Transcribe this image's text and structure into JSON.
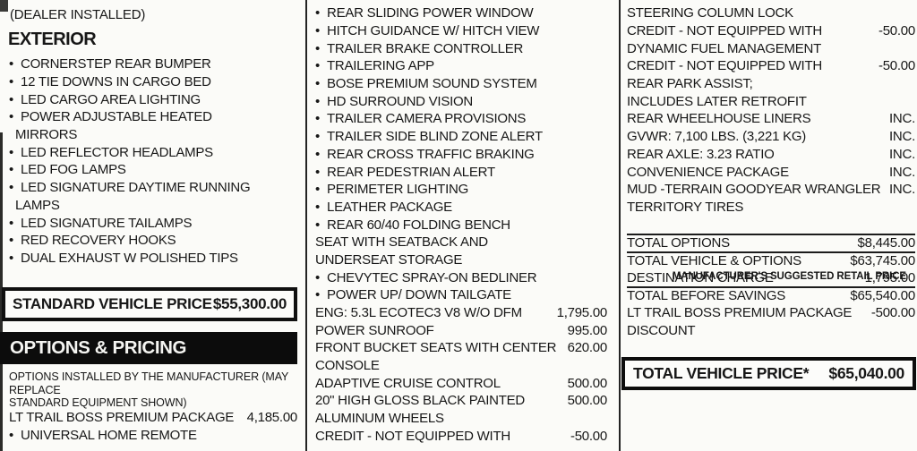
{
  "colors": {
    "ink": "#171717",
    "paper": "#fbfbf8",
    "bar_bg": "#0c0c0c",
    "bar_text": "#f5f5f2"
  },
  "left": {
    "dealer_note": "(DEALER INSTALLED)",
    "exterior_heading": "EXTERIOR",
    "exterior_items": [
      {
        "t": "CORNERSTEP REAR BUMPER",
        "b": true
      },
      {
        "t": "12 TIE DOWNS IN CARGO BED",
        "b": true
      },
      {
        "t": "LED CARGO AREA LIGHTING",
        "b": true
      },
      {
        "t": "POWER ADJUSTABLE HEATED",
        "b": true
      },
      {
        "t": "MIRRORS",
        "cls": "cont"
      },
      {
        "t": "LED REFLECTOR HEADLAMPS",
        "b": true
      },
      {
        "t": "LED FOG LAMPS",
        "b": true
      },
      {
        "t": "LED SIGNATURE DAYTIME RUNNING",
        "b": true
      },
      {
        "t": "LAMPS",
        "cls": "cont"
      },
      {
        "t": "LED SIGNATURE TAILAMPS",
        "b": true
      },
      {
        "t": "RED RECOVERY HOOKS",
        "b": true
      },
      {
        "t": "DUAL EXHAUST W POLISHED TIPS",
        "b": true
      }
    ],
    "msrp_note": "MANUFACTURER'S SUGGESTED RETAIL PRICE",
    "standard_price_label": "STANDARD VEHICLE PRICE",
    "standard_price_value": "$55,300.00",
    "options_pricing_heading": "OPTIONS & PRICING",
    "manufacturer_note_line1": "OPTIONS INSTALLED BY THE MANUFACTURER (MAY REPLACE",
    "manufacturer_note_line2": "STANDARD EQUIPMENT SHOWN)",
    "option_rows": [
      {
        "t": "LT TRAIL BOSS PREMIUM PACKAGE",
        "v": "4,185.00"
      },
      {
        "t": "UNIVERSAL HOME REMOTE",
        "b": true
      }
    ]
  },
  "mid": {
    "rows": [
      {
        "t": "REAR SLIDING POWER WINDOW",
        "b": true
      },
      {
        "t": "HITCH GUIDANCE W/ HITCH VIEW",
        "b": true
      },
      {
        "t": "TRAILER BRAKE CONTROLLER",
        "b": true
      },
      {
        "t": "TRAILERING APP",
        "b": true
      },
      {
        "t": "BOSE PREMIUM SOUND SYSTEM",
        "b": true
      },
      {
        "t": "HD SURROUND VISION",
        "b": true
      },
      {
        "t": "TRAILER CAMERA PROVISIONS",
        "b": true
      },
      {
        "t": "TRAILER SIDE BLIND ZONE ALERT",
        "b": true
      },
      {
        "t": "REAR CROSS TRAFFIC BRAKING",
        "b": true
      },
      {
        "t": "REAR PEDESTRIAN ALERT",
        "b": true
      },
      {
        "t": "PERIMETER LIGHTING",
        "b": true
      },
      {
        "t": "LEATHER PACKAGE",
        "b": true
      },
      {
        "t": "REAR 60/40 FOLDING BENCH",
        "b": true
      },
      {
        "t": "SEAT WITH SEATBACK AND"
      },
      {
        "t": "UNDERSEAT STORAGE"
      },
      {
        "t": "CHEVYTEC SPRAY-ON BEDLINER",
        "b": true
      },
      {
        "t": "POWER UP/ DOWN TAILGATE",
        "b": true
      },
      {
        "t": "ENG: 5.3L ECOTEC3 V8 W/O DFM",
        "v": "1,795.00"
      },
      {
        "t": "POWER SUNROOF",
        "v": "995.00"
      },
      {
        "t": "FRONT BUCKET SEATS WITH CENTER",
        "v": "620.00"
      },
      {
        "t": "CONSOLE"
      },
      {
        "t": "ADAPTIVE CRUISE CONTROL",
        "v": "500.00"
      },
      {
        "t": "20\" HIGH GLOSS BLACK PAINTED",
        "v": "500.00"
      },
      {
        "t": "ALUMINUM WHEELS"
      },
      {
        "t": "CREDIT - NOT EQUIPPED WITH",
        "v": "-50.00"
      }
    ]
  },
  "right": {
    "rows": [
      {
        "t": "STEERING COLUMN LOCK"
      },
      {
        "t": "CREDIT - NOT EQUIPPED WITH",
        "v": "-50.00"
      },
      {
        "t": "DYNAMIC FUEL MANAGEMENT"
      },
      {
        "t": "CREDIT - NOT EQUIPPED WITH",
        "v": "-50.00"
      },
      {
        "t": "REAR PARK ASSIST;"
      },
      {
        "t": "INCLUDES LATER RETROFIT"
      },
      {
        "t": "REAR WHEELHOUSE LINERS",
        "v": "INC."
      },
      {
        "t": "GVWR: 7,100 LBS. (3,221 KG)",
        "v": "INC."
      },
      {
        "t": "REAR AXLE: 3.23 RATIO",
        "v": "INC."
      },
      {
        "t": "CONVENIENCE PACKAGE",
        "v": "INC."
      },
      {
        "t": "MUD -TERRAIN GOODYEAR WRANGLER",
        "v": "INC."
      },
      {
        "t": "TERRITORY TIRES"
      },
      {
        "t": ""
      },
      {
        "t": "TOTAL OPTIONS",
        "v": "$8,445.00",
        "cls": "tl"
      },
      {
        "t": "TOTAL VEHICLE & OPTIONS",
        "v": "$63,745.00",
        "cls": "tl"
      },
      {
        "t": "DESTINATION CHARGE",
        "v": "1,795.00"
      },
      {
        "t": "TOTAL BEFORE SAVINGS",
        "v": "$65,540.00",
        "cls": "tl"
      },
      {
        "t": "LT TRAIL BOSS PREMIUM PACKAGE",
        "v": "-500.00"
      },
      {
        "t": "DISCOUNT"
      }
    ],
    "total_box_label": "TOTAL VEHICLE PRICE*",
    "total_box_value": "$65,040.00"
  }
}
